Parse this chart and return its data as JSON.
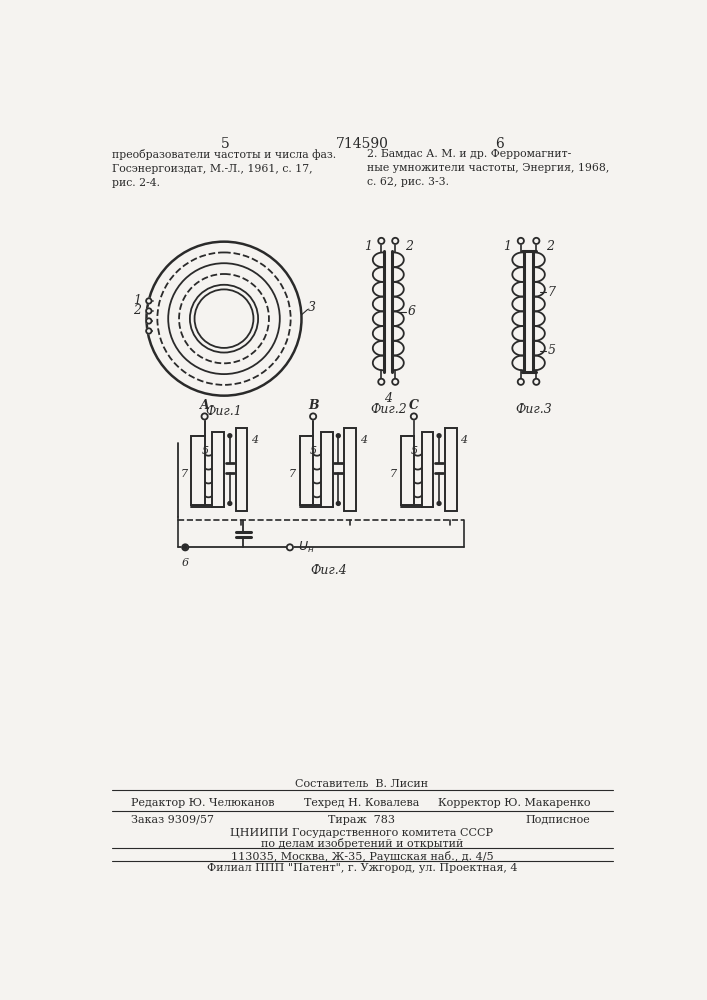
{
  "page_title": "714590",
  "page_left": "5",
  "page_right": "6",
  "text_left": "преобразователи частоты и числа фаз.\nГосэнергоиздат, М.-Л., 1961, с. 17,\nрис. 2-4.",
  "text_right": "2. Бамдас А. М. и др. Ферромагнит-\nные умножители частоты, Энергия, 1968,\nс. 62, рис. 3-3.",
  "fig1_label": "Фиг.1",
  "fig2_label": "Фиг.2",
  "fig3_label": "Фиг.3",
  "fig4_label": "Фиг.4",
  "footer_line1": "Составитель  В. Лисин",
  "footer_line2_left": "Редактор Ю. Челюканов",
  "footer_line2_mid": "Техред Н. Ковалева",
  "footer_line2_right": "Корректор Ю. Макаренко",
  "footer_line3_left": "Заказ 9309/57",
  "footer_line3_mid": "Тираж  783",
  "footer_line3_right": "Подписное",
  "footer_line4": "ЦНИИПИ Государственного комитета СССР",
  "footer_line5": "по делам изобретений и открытий",
  "footer_line6": "113035, Москва, Ж-35, Раушская наб., д. 4/5",
  "footer_line7": "Филиал ППП \"Патент\", г. Ужгород, ул. Проектная, 4",
  "bg_color": "#f5f3f0",
  "line_color": "#2a2a2a"
}
